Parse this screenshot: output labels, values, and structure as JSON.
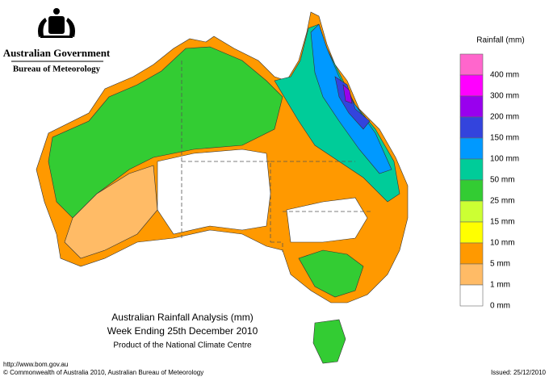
{
  "header": {
    "government": "Australian Government",
    "agency": "Bureau of Meteorology"
  },
  "legend": {
    "title": "Rainfall (mm)",
    "items": [
      {
        "label": "400 mm",
        "color": "#ff66cc"
      },
      {
        "label": "300 mm",
        "color": "#ff00ff"
      },
      {
        "label": "200 mm",
        "color": "#9900ee"
      },
      {
        "label": "150 mm",
        "color": "#3344dd"
      },
      {
        "label": "100 mm",
        "color": "#0099ff"
      },
      {
        "label": "50 mm",
        "color": "#00cc99"
      },
      {
        "label": "25 mm",
        "color": "#33cc33"
      },
      {
        "label": "15 mm",
        "color": "#ccff33"
      },
      {
        "label": "10 mm",
        "color": "#ffff00"
      },
      {
        "label": "5 mm",
        "color": "#ff9900"
      },
      {
        "label": "1 mm",
        "color": "#ffbb66"
      },
      {
        "label": "0 mm",
        "color": "#ffffff"
      }
    ]
  },
  "map": {
    "title": "Australian Rainfall Analysis (mm)",
    "subtitle": "Week Ending 25th December 2010",
    "credit": "Product of the National Climate Centre"
  },
  "footer": {
    "url": "http://www.bom.gov.au",
    "copyright": "© Commonwealth of Australia 2010, Australian Bureau of Meteorology",
    "issued": "Issued: 25/12/2010"
  }
}
